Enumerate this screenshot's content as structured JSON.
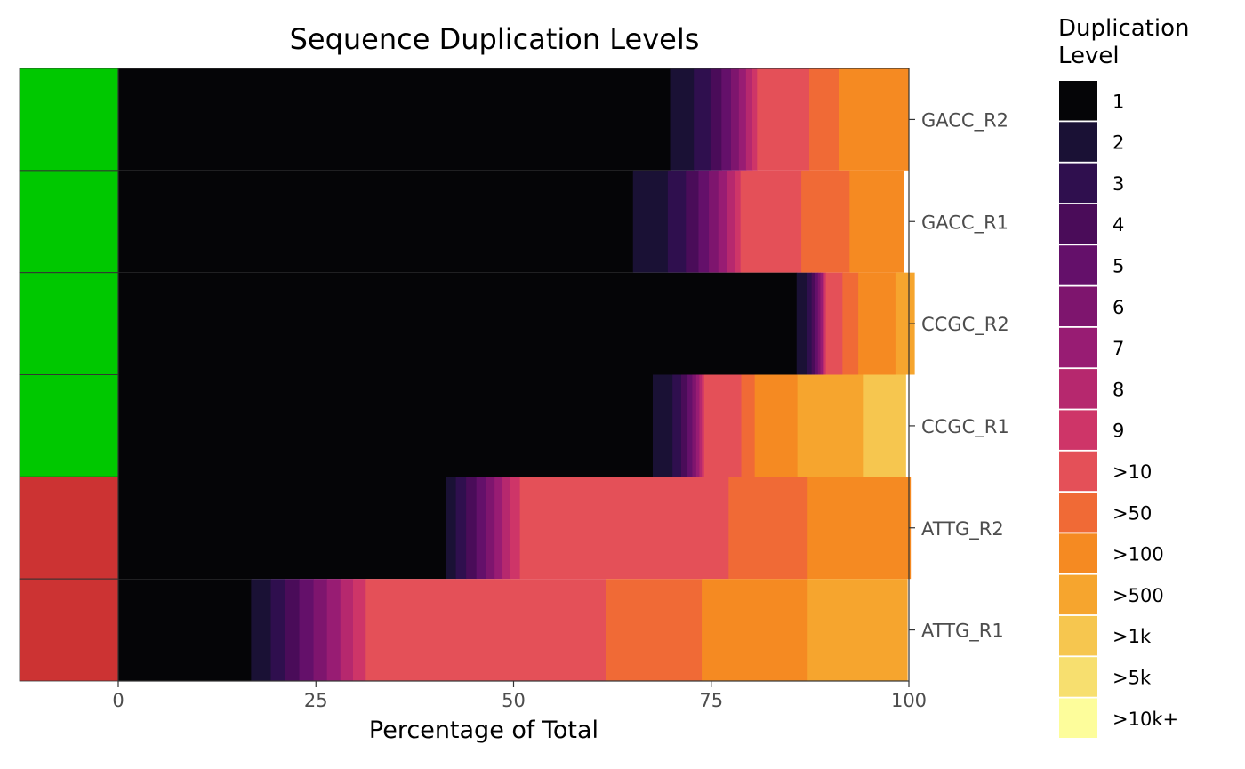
{
  "chart_data": {
    "type": "bar",
    "orientation": "horizontal",
    "stacked": true,
    "title": "Sequence Duplication Levels",
    "xlabel": "Percentage of Total",
    "ylabel": "",
    "xlim": [
      0,
      100
    ],
    "x_ticks": [
      "0",
      "25",
      "50",
      "75",
      "100"
    ],
    "grid": false,
    "legend": {
      "title_lines": [
        "Duplication",
        "Level"
      ],
      "placement": "right"
    },
    "levels": [
      {
        "label": "1",
        "color": "#050507"
      },
      {
        "label": "2",
        "color": "#1A1135"
      },
      {
        "label": "3",
        "color": "#2F0F4E"
      },
      {
        "label": "4",
        "color": "#4A0C59"
      },
      {
        "label": "5",
        "color": "#64106A"
      },
      {
        "label": "6",
        "color": "#7E156E"
      },
      {
        "label": "7",
        "color": "#981C73"
      },
      {
        "label": "8",
        "color": "#B6286E"
      },
      {
        "label": "9",
        "color": "#CE3568"
      },
      {
        "label": ">10",
        "color": "#E45058"
      },
      {
        "label": ">50",
        "color": "#F06A36"
      },
      {
        "label": ">100",
        "color": "#F58A22"
      },
      {
        "label": ">500",
        "color": "#F6A52E"
      },
      {
        "label": ">1k",
        "color": "#F6C64F"
      },
      {
        "label": ">5k",
        "color": "#F7DF6F"
      },
      {
        "label": ">10k+",
        "color": "#FDFD9B"
      }
    ],
    "categories": [
      "GACC_R2",
      "GACC_R1",
      "CCGC_R2",
      "CCGC_R1",
      "ATTG_R2",
      "ATTG_R1"
    ],
    "status_colors": [
      "#00C800",
      "#00C800",
      "#00C800",
      "#00C800",
      "#CC3333",
      "#CC3333"
    ],
    "series": [
      {
        "name": "1",
        "values": [
          69.8,
          65.1,
          85.8,
          67.6,
          41.4,
          16.8
        ]
      },
      {
        "name": "2",
        "values": [
          3.0,
          4.4,
          1.3,
          2.5,
          1.3,
          2.5
        ]
      },
      {
        "name": "3",
        "values": [
          2.1,
          2.3,
          0.6,
          1.1,
          1.3,
          1.8
        ]
      },
      {
        "name": "4",
        "values": [
          1.4,
          1.6,
          0.4,
          0.8,
          1.3,
          1.8
        ]
      },
      {
        "name": "5",
        "values": [
          1.2,
          1.3,
          0.4,
          0.6,
          1.2,
          1.8
        ]
      },
      {
        "name": "6",
        "values": [
          1.0,
          1.2,
          0.3,
          0.5,
          1.1,
          1.7
        ]
      },
      {
        "name": "7",
        "values": [
          0.9,
          1.1,
          0.3,
          0.4,
          1.0,
          1.7
        ]
      },
      {
        "name": "8",
        "values": [
          0.8,
          1.0,
          0.2,
          0.3,
          1.0,
          1.6
        ]
      },
      {
        "name": "9",
        "values": [
          0.6,
          0.7,
          0.2,
          0.3,
          1.2,
          1.6
        ]
      },
      {
        "name": ">10",
        "values": [
          6.6,
          7.7,
          2.1,
          4.7,
          26.4,
          30.4
        ]
      },
      {
        "name": ">50",
        "values": [
          3.8,
          6.1,
          2.0,
          1.7,
          10.0,
          12.1
        ]
      },
      {
        "name": ">100",
        "values": [
          8.8,
          6.8,
          4.7,
          5.4,
          13.0,
          13.4
        ]
      },
      {
        "name": ">500",
        "values": [
          0.0,
          0.0,
          2.4,
          8.4,
          0.0,
          12.6
        ]
      },
      {
        "name": ">1k",
        "values": [
          0.0,
          0.0,
          0.0,
          5.3,
          0.0,
          0.0
        ]
      },
      {
        "name": ">5k",
        "values": [
          0.0,
          0.0,
          0.0,
          0.0,
          0.0,
          0.0
        ]
      },
      {
        "name": ">10k+",
        "values": [
          0.0,
          0.0,
          0.0,
          0.0,
          0.0,
          0.0
        ]
      }
    ]
  }
}
